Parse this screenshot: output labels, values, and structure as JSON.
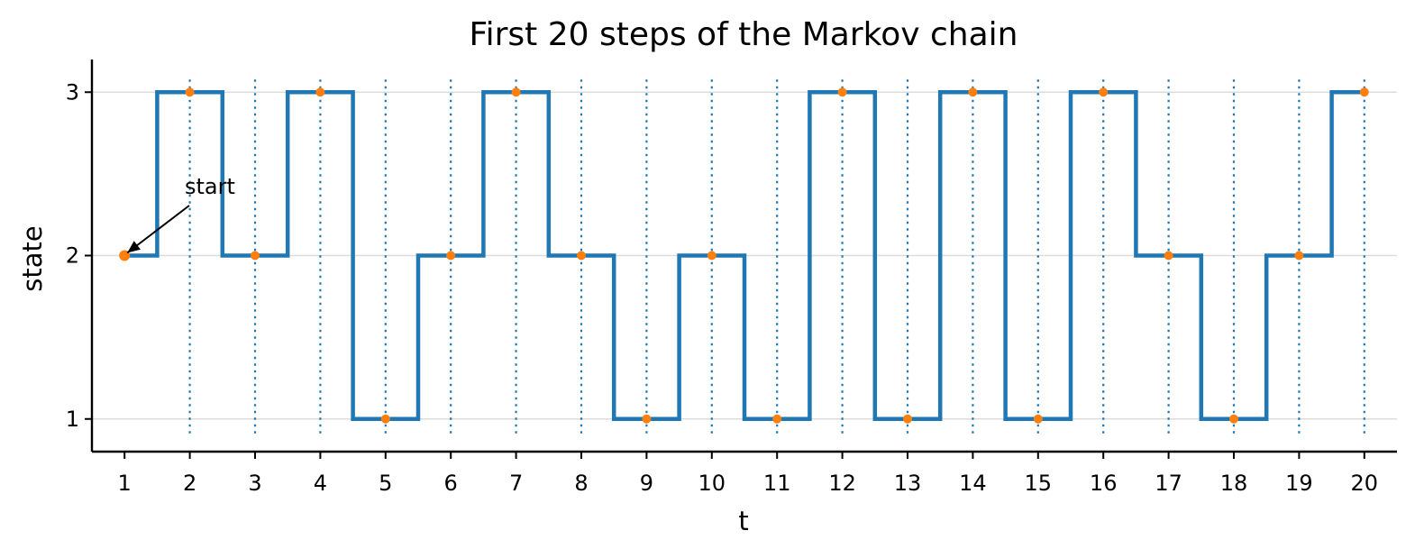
{
  "chart_data": {
    "type": "line",
    "step": "mid",
    "title": "First 20 steps of the Markov chain",
    "xlabel": "t",
    "ylabel": "state",
    "x": [
      1,
      2,
      3,
      4,
      5,
      6,
      7,
      8,
      9,
      10,
      11,
      12,
      13,
      14,
      15,
      16,
      17,
      18,
      19,
      20
    ],
    "series": [
      {
        "values": [
          2,
          3,
          2,
          3,
          1,
          2,
          3,
          2,
          1,
          2,
          1,
          3,
          1,
          3,
          1,
          3,
          2,
          1,
          2,
          3
        ]
      }
    ],
    "x_ticks": [
      "1",
      "2",
      "3",
      "4",
      "5",
      "6",
      "7",
      "8",
      "9",
      "10",
      "11",
      "12",
      "13",
      "14",
      "15",
      "16",
      "17",
      "18",
      "19",
      "20"
    ],
    "y_ticks": [
      "1",
      "2",
      "3"
    ],
    "xlim": [
      0.5,
      20.5
    ],
    "ylim": [
      0.8,
      3.2
    ],
    "grid": "horizontal",
    "vertical_guides": true,
    "annotation": {
      "text": "start",
      "x": 1,
      "y": 2
    },
    "colors": {
      "line": "#1f77b4",
      "points": "#ff7f0e",
      "grid": "#dcdcdc"
    }
  }
}
